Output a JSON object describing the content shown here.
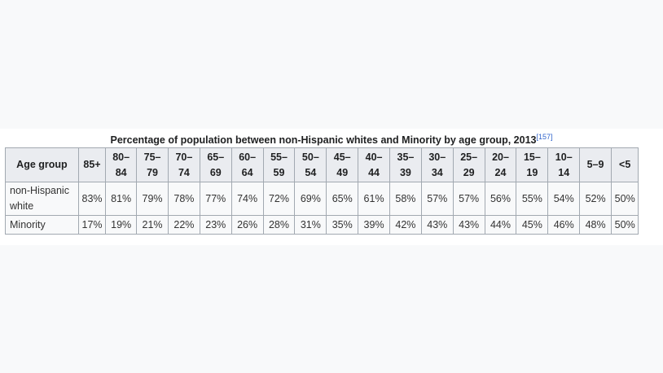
{
  "caption": "Percentage of population between non-Hispanic whites and Minority by age group, 2013",
  "caption_ref": "[157]",
  "table": {
    "headers": [
      "Age group",
      "85+",
      "80–\n84",
      "75–\n79",
      "70–\n74",
      "65–\n69",
      "60–\n64",
      "55–\n59",
      "50–\n54",
      "45–\n49",
      "40–\n44",
      "35–\n39",
      "30–\n34",
      "25–\n29",
      "20–\n24",
      "15–\n19",
      "10–\n14",
      "5–9",
      "<5"
    ],
    "rows": [
      {
        "label": "non-Hispanic\nwhite",
        "values": [
          "83%",
          "81%",
          "79%",
          "78%",
          "77%",
          "74%",
          "72%",
          "69%",
          "65%",
          "61%",
          "58%",
          "57%",
          "57%",
          "56%",
          "55%",
          "54%",
          "52%",
          "50%"
        ]
      },
      {
        "label": "Minority",
        "values": [
          "17%",
          "19%",
          "21%",
          "22%",
          "23%",
          "26%",
          "28%",
          "31%",
          "35%",
          "39%",
          "42%",
          "43%",
          "43%",
          "44%",
          "45%",
          "46%",
          "48%",
          "50%"
        ]
      }
    ]
  }
}
